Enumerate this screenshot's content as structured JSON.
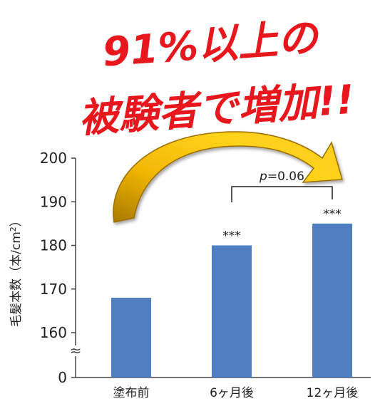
{
  "headline": {
    "line1": "91%以上の",
    "line2": "被験者で増加!!",
    "color": "#e8171d",
    "outline": "#ffffff"
  },
  "colors": {
    "bar": "#4f7fc1",
    "arrow_light": "#ffd21a",
    "arrow_dark": "#b88400",
    "axis": "#444444",
    "text": "#222222"
  },
  "chart_data": {
    "type": "bar",
    "categories": [
      "塗布前",
      "6ヶ月後",
      "12ヶ月後"
    ],
    "values": [
      168,
      180,
      185
    ],
    "ylabel": "毛髪本数（本/cm²）",
    "ylabel_text": "毛髪本数（本/cm",
    "ylabel_sup": "2",
    "ylabel_close": "）",
    "yticks": [
      0,
      160,
      170,
      180,
      190,
      200
    ],
    "ylim": [
      160,
      200
    ],
    "axis_break": true,
    "break_glyph": "≈",
    "significance": [
      "",
      "***",
      "***"
    ],
    "comparison": {
      "between": [
        1,
        2
      ],
      "label_p": "p",
      "label_value": "=0.06"
    },
    "grid": false,
    "legend": "none"
  }
}
